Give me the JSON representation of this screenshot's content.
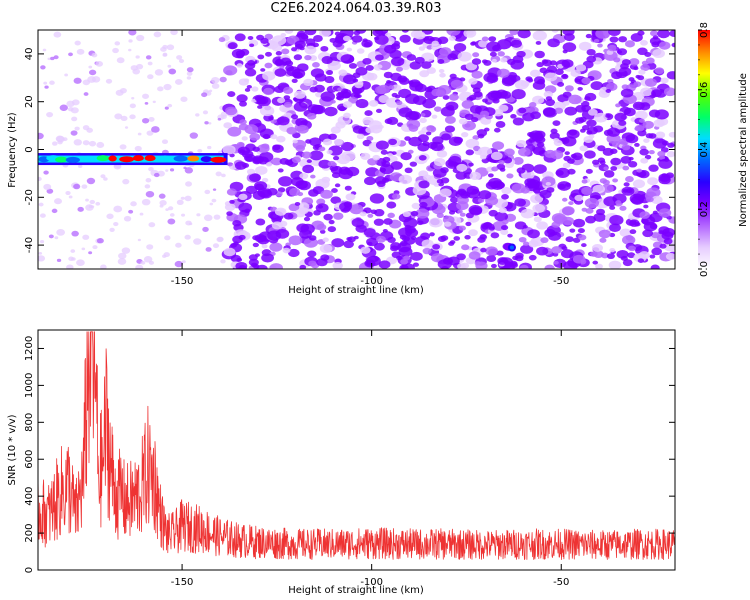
{
  "title": "C2E6.2024.064.03.39.R03",
  "colors": {
    "series": "#ee3333",
    "axes": "#000000",
    "colormap": [
      "#ffffff",
      "#e6ccff",
      "#b366ff",
      "#7a00ff",
      "#2a00ff",
      "#0066ff",
      "#00ddff",
      "#00ff66",
      "#55ff00",
      "#ffff00",
      "#ff8800",
      "#ff0000"
    ]
  },
  "chart_data": [
    {
      "type": "heatmap",
      "xlabel": "Height of straight line (km)",
      "ylabel": "Frequency (Hz)",
      "xlim": [
        -188,
        -20
      ],
      "ylim": [
        -50,
        50
      ],
      "xticks": [
        -150,
        -100,
        -50
      ],
      "xtick_labels": [
        "-150",
        "-100",
        "-50"
      ],
      "yticks": [
        -40,
        -20,
        0,
        20,
        40
      ],
      "ytick_labels": [
        "-40",
        "-20",
        "0",
        "20",
        "40"
      ],
      "colorbar": {
        "label": "Normalized spectral amplitude",
        "range": [
          0,
          0.8
        ],
        "ticks": [
          0,
          0.2,
          0.4,
          0.6,
          0.8
        ],
        "tick_labels": [
          "0.0",
          "0.2",
          "0.4",
          "0.6",
          "0.8"
        ]
      },
      "features": [
        {
          "kind": "strong-band",
          "frequency_hz": -4,
          "x_range_km": [
            -188,
            -138
          ],
          "amplitude": 0.75
        },
        {
          "kind": "noise",
          "x_range_km": [
            -138,
            -20
          ],
          "amplitude_range": [
            0,
            0.25
          ]
        },
        {
          "kind": "spot",
          "x_km": -63,
          "frequency_hz": -41,
          "amplitude": 0.2
        }
      ]
    },
    {
      "type": "line",
      "xlabel": "Height of straight line (km)",
      "ylabel": "SNR (10 * v/v)",
      "xlim": [
        -188,
        -20
      ],
      "ylim": [
        0,
        1300
      ],
      "xticks": [
        -150,
        -100,
        -50
      ],
      "xtick_labels": [
        "-150",
        "-100",
        "-50"
      ],
      "yticks": [
        0,
        200,
        400,
        600,
        800,
        1000,
        1200
      ],
      "ytick_labels": [
        "0",
        "200",
        "400",
        "600",
        "800",
        "1000",
        "1200"
      ],
      "series": [
        {
          "x": [
            -188,
            -185,
            -182,
            -180,
            -178,
            -176,
            -175,
            -174,
            -173,
            -172,
            -171,
            -170,
            -169,
            -168,
            -167,
            -166,
            -165,
            -163,
            -161,
            -160,
            -159,
            -158,
            -157,
            -156,
            -155,
            -154,
            -152,
            -150,
            -145,
            -140,
            -135,
            -130,
            -120,
            -110,
            -100,
            -90,
            -80,
            -70,
            -60,
            -50,
            -40,
            -30,
            -20
          ],
          "y": [
            320,
            300,
            420,
            460,
            300,
            500,
            1060,
            1270,
            1100,
            520,
            560,
            800,
            600,
            450,
            400,
            420,
            360,
            380,
            420,
            490,
            560,
            520,
            470,
            330,
            250,
            190,
            200,
            240,
            220,
            180,
            160,
            150,
            140,
            140,
            145,
            140,
            140,
            135,
            140,
            140,
            135,
            140,
            140
          ],
          "noise_range": [
            50,
            320
          ]
        }
      ]
    }
  ]
}
